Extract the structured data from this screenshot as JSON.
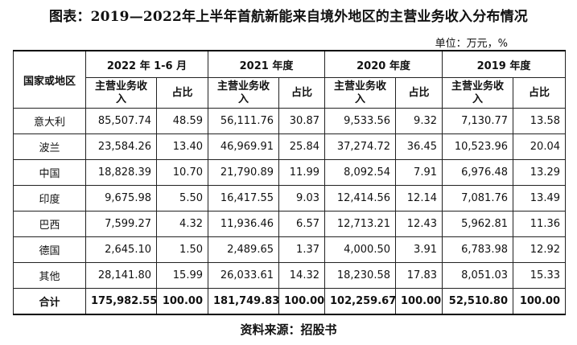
{
  "title": "图表：2019—2022年上半年首航新能来自境外地区的主营业务收入分布情况",
  "unit": "单位：万元，%",
  "header": {
    "region_label": "国家或地区",
    "periods": [
      "2022 年 1-6 月",
      "2021 年度",
      "2020 年度",
      "2019 年度"
    ],
    "revenue_label": "主营业务收入",
    "share_label": "占比"
  },
  "rows": [
    {
      "region": "意大利",
      "values": [
        "85,507.74",
        "48.59",
        "56,111.76",
        "30.87",
        "9,533.56",
        "9.32",
        "7,130.77",
        "13.58"
      ]
    },
    {
      "region": "波兰",
      "values": [
        "23,584.26",
        "13.40",
        "46,969.91",
        "25.84",
        "37,274.72",
        "36.45",
        "10,523.96",
        "20.04"
      ]
    },
    {
      "region": "中国",
      "values": [
        "18,828.39",
        "10.70",
        "21,790.89",
        "11.99",
        "8,092.54",
        "7.91",
        "6,976.48",
        "13.29"
      ]
    },
    {
      "region": "印度",
      "values": [
        "9,675.98",
        "5.50",
        "16,417.55",
        "9.03",
        "12,414.56",
        "12.14",
        "7,081.76",
        "13.49"
      ]
    },
    {
      "region": "巴西",
      "values": [
        "7,599.27",
        "4.32",
        "11,936.46",
        "6.57",
        "12,713.21",
        "12.43",
        "5,962.81",
        "11.36"
      ]
    },
    {
      "region": "德国",
      "values": [
        "2,645.10",
        "1.50",
        "2,489.65",
        "1.37",
        "4,000.50",
        "3.91",
        "6,783.98",
        "12.92"
      ]
    },
    {
      "region": "其他",
      "values": [
        "28,141.80",
        "15.99",
        "26,033.61",
        "14.32",
        "18,230.58",
        "17.83",
        "8,051.03",
        "15.33"
      ]
    }
  ],
  "total": {
    "region": "合计",
    "values": [
      "175,982.55",
      "100.00",
      "181,749.83",
      "100.00",
      "102,259.67",
      "100.00",
      "52,510.80",
      "100.00"
    ]
  },
  "source": "资料来源：招股书"
}
